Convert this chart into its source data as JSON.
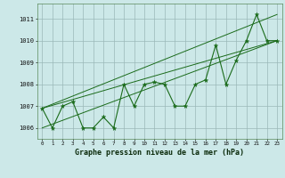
{
  "x": [
    0,
    1,
    2,
    3,
    4,
    5,
    6,
    7,
    8,
    9,
    10,
    11,
    12,
    13,
    14,
    15,
    16,
    17,
    18,
    19,
    20,
    21,
    22,
    23
  ],
  "y": [
    1006.9,
    1006.0,
    1007.0,
    1007.2,
    1006.0,
    1006.0,
    1006.5,
    1006.0,
    1008.0,
    1007.0,
    1008.0,
    1008.1,
    1008.0,
    1007.0,
    1007.0,
    1008.0,
    1008.2,
    1009.8,
    1008.0,
    1009.1,
    1010.0,
    1011.2,
    1010.0,
    1010.0
  ],
  "line_color": "#1a6b1a",
  "bg_color": "#cce8e8",
  "grid_color": "#9ab8b8",
  "title": "Graphe pression niveau de la mer (hPa)",
  "ylim": [
    1005.5,
    1011.7
  ],
  "xlim": [
    -0.5,
    23.5
  ],
  "yticks": [
    1006,
    1007,
    1008,
    1009,
    1010,
    1011
  ],
  "trend_lines": [
    [
      0,
      1006.9,
      23,
      1010.0
    ],
    [
      0,
      1006.0,
      23,
      1010.0
    ],
    [
      0,
      1006.9,
      23,
      1011.2
    ]
  ]
}
